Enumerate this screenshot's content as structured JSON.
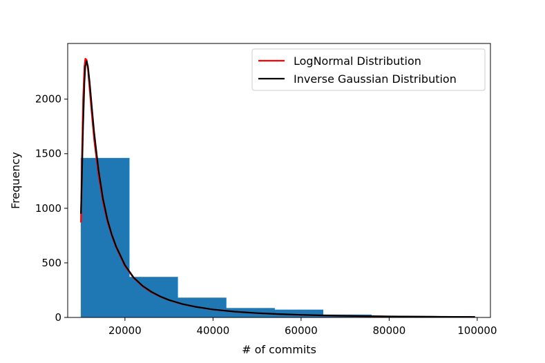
{
  "chart_data": {
    "type": "histogram",
    "xlabel": "# of commits",
    "ylabel": "Frequency",
    "xlim": [
      7000,
      103000
    ],
    "ylim": [
      0,
      2510
    ],
    "xticks": [
      20000,
      40000,
      60000,
      80000,
      100000
    ],
    "yticks": [
      0,
      500,
      1000,
      1500,
      2000
    ],
    "grid": false,
    "legend_position": "top-right",
    "bars": [
      {
        "start": 10000,
        "end": 21000,
        "value": 1460
      },
      {
        "start": 21000,
        "end": 32000,
        "value": 370
      },
      {
        "start": 32000,
        "end": 43000,
        "value": 180
      },
      {
        "start": 43000,
        "end": 54000,
        "value": 85
      },
      {
        "start": 54000,
        "end": 65000,
        "value": 70
      },
      {
        "start": 65000,
        "end": 76000,
        "value": 25
      },
      {
        "start": 76000,
        "end": 87000,
        "value": 12
      },
      {
        "start": 87000,
        "end": 98000,
        "value": 8
      }
    ],
    "bar_color": "#1f77b4",
    "series": [
      {
        "name": "LogNormal Distribution",
        "color": "#ff0000",
        "x": [
          10000,
          10200,
          10500,
          10800,
          11000,
          11300,
          11600,
          12000,
          12500,
          13000,
          14000,
          15000,
          16000,
          17000,
          18000,
          20000,
          22000,
          24000,
          26000,
          28000,
          30000,
          33000,
          36000,
          40000,
          45000,
          50000,
          55000,
          60000,
          65000,
          70000,
          75000,
          80000,
          85000,
          90000,
          95000,
          99500
        ],
        "y": [
          870,
          1400,
          2000,
          2300,
          2370,
          2360,
          2270,
          2080,
          1850,
          1630,
          1300,
          1060,
          880,
          750,
          640,
          470,
          360,
          285,
          230,
          190,
          158,
          122,
          97,
          72,
          52,
          39,
          30,
          23,
          18,
          14,
          11,
          9,
          7,
          6,
          5,
          4
        ]
      },
      {
        "name": "Inverse Gaussian Distribution",
        "color": "#000000",
        "x": [
          10000,
          10200,
          10500,
          10800,
          11000,
          11300,
          11600,
          12000,
          12500,
          13000,
          14000,
          15000,
          16000,
          17000,
          18000,
          20000,
          22000,
          24000,
          26000,
          28000,
          30000,
          33000,
          36000,
          40000,
          45000,
          50000,
          55000,
          60000,
          65000,
          70000,
          75000,
          80000,
          85000,
          90000,
          95000,
          99500
        ],
        "y": [
          950,
          1250,
          1750,
          2150,
          2300,
          2350,
          2300,
          2150,
          1920,
          1700,
          1350,
          1090,
          900,
          760,
          650,
          480,
          365,
          290,
          235,
          193,
          160,
          124,
          98,
          73,
          53,
          40,
          31,
          24,
          19,
          15,
          12,
          10,
          8,
          7,
          6,
          5
        ]
      }
    ]
  }
}
